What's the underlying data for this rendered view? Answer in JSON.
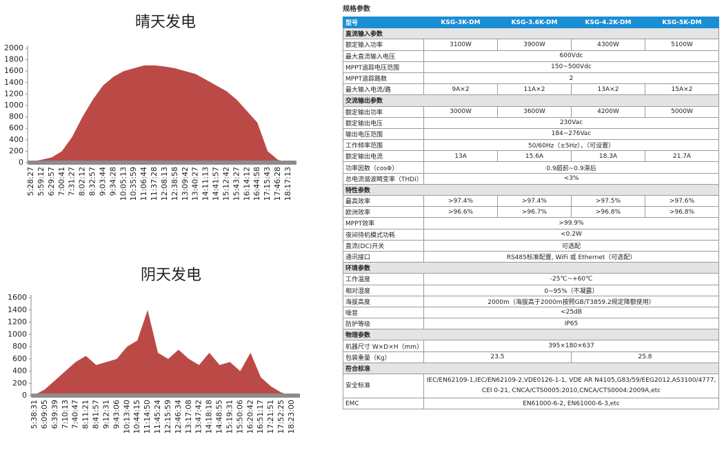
{
  "chart_data": [
    {
      "type": "area",
      "title": "晴天发电",
      "color": "#bb4a47",
      "categories": [
        "5:28:27",
        "5:59:12",
        "6:29:57",
        "7:00:41",
        "7:31:27",
        "8:02:12",
        "8:32:57",
        "9:03:44",
        "9:34:28",
        "10:05:13",
        "10:35:59",
        "11:06:44",
        "11:37:28",
        "12:08:13",
        "12:38:58",
        "13:09:42",
        "13:40:27",
        "14:11:13",
        "14:41:57",
        "15:12:42",
        "15:43:27",
        "16:14:12",
        "16:44:58",
        "17:15:43",
        "17:46:28",
        "18:17:13"
      ],
      "values": [
        20,
        50,
        90,
        200,
        450,
        800,
        1100,
        1350,
        1500,
        1600,
        1650,
        1700,
        1700,
        1680,
        1650,
        1600,
        1550,
        1450,
        1350,
        1250,
        1100,
        900,
        700,
        200,
        50,
        0
      ],
      "ylim": [
        0,
        2000
      ],
      "yticks": [
        0,
        200,
        400,
        600,
        800,
        1000,
        1200,
        1400,
        1600,
        1800,
        2000
      ]
    },
    {
      "type": "area",
      "title": "阴天发电",
      "color": "#bb4a47",
      "categories": [
        "5:38:31",
        "6:09:05",
        "6:39:39",
        "7:10:13",
        "7:40:47",
        "8:11:21",
        "8:41:57",
        "9:12:31",
        "9:43:06",
        "10:13:40",
        "10:44:15",
        "11:14:50",
        "11:45:24",
        "12:15:59",
        "12:46:34",
        "13:17:08",
        "13:47:42",
        "14:18:18",
        "14:48:55",
        "15:19:31",
        "15:50:06",
        "16:20:42",
        "16:51:17",
        "17:21:51",
        "17:52:25",
        "18:23:00"
      ],
      "values": [
        10,
        100,
        250,
        400,
        550,
        650,
        500,
        550,
        600,
        800,
        900,
        1400,
        700,
        600,
        750,
        600,
        500,
        700,
        500,
        550,
        400,
        700,
        300,
        150,
        50,
        0
      ],
      "ylim": [
        0,
        1600
      ],
      "yticks": [
        0,
        200,
        400,
        600,
        800,
        1000,
        1200,
        1400,
        1600
      ]
    }
  ],
  "table": {
    "title": "规格参数",
    "header": [
      "型号",
      "KSG-3K-DM",
      "KSG-3.6K-DM",
      "KSG-4.2K-DM",
      "KSG-5K-DM"
    ],
    "rows": [
      {
        "section": "直流输入参数"
      },
      {
        "label": "额定输入功率",
        "cells": [
          "3100W",
          "3900W",
          "4300W",
          "5100W"
        ]
      },
      {
        "label": "最大直流输入电压",
        "cells": [
          "600Vdc"
        ]
      },
      {
        "label": "MPPT追踪电压范围",
        "cells": [
          "150~500Vdc"
        ]
      },
      {
        "label": "MPPT追踪路数",
        "cells": [
          "2"
        ]
      },
      {
        "label": "最大输入电流/路",
        "cells": [
          "9A×2",
          "11A×2",
          "13A×2",
          "15A×2"
        ]
      },
      {
        "section": "交流输出参数"
      },
      {
        "label": "额定输出功率",
        "cells": [
          "3000W",
          "3600W",
          "4200W",
          "5000W"
        ]
      },
      {
        "label": "额定输出电压",
        "cells": [
          "230Vac"
        ]
      },
      {
        "label": "输出电压范围",
        "cells": [
          "184~276Vac"
        ]
      },
      {
        "label": "工作频率范围",
        "cells": [
          "50/60Hz（±5Hz），（可设置）"
        ]
      },
      {
        "label": "额定输出电流",
        "cells": [
          "13A",
          "15.6A",
          "18.3A",
          "21.7A"
        ]
      },
      {
        "label": "功率因数（cosΦ）",
        "cells": [
          "0.9超前~0.9滞后"
        ]
      },
      {
        "label": "总电流谐波畸变率（THDi）",
        "cells": [
          "<3%"
        ]
      },
      {
        "section": "特性参数"
      },
      {
        "label": "最高效率",
        "cells": [
          ">97.4%",
          ">97.4%",
          ">97.5%",
          ">97.6%"
        ]
      },
      {
        "label": "欧洲效率",
        "cells": [
          ">96.6%",
          ">96.7%",
          ">96.8%",
          ">96.8%"
        ]
      },
      {
        "label": "MPPT效率",
        "cells": [
          ">99.9%"
        ]
      },
      {
        "label": "夜间待机模式功耗",
        "cells": [
          "<0.2W"
        ]
      },
      {
        "label": "直流(DC)开关",
        "cells": [
          "可选配"
        ]
      },
      {
        "label": "通讯接口",
        "cells": [
          "RS485标准配置, WiFi 或 Ethernet（可选配）"
        ]
      },
      {
        "section": "环境参数"
      },
      {
        "label": "工作温度",
        "cells": [
          "-25℃~+60℃"
        ]
      },
      {
        "label": "相对湿度",
        "cells": [
          "0~95%（不凝露）"
        ]
      },
      {
        "label": "海拔高度",
        "cells": [
          "2000m（海拔高于2000m按照GB/T3859.2规定降额使用）"
        ]
      },
      {
        "label": "噪音",
        "cells": [
          "<25dB"
        ]
      },
      {
        "label": "防护等级",
        "cells": [
          "IP65"
        ]
      },
      {
        "section": "物理参数"
      },
      {
        "label": "机器尺寸 W×D×H（mm）",
        "cells": [
          "395×180×637"
        ]
      },
      {
        "label": "包装重量（Kg）",
        "cells": [
          "23.5",
          "25.8"
        ]
      },
      {
        "section": "符合标准"
      },
      {
        "label": "安全标准",
        "cells": [
          "IEC/EN62109-1,IEC/EN62109-2,VDE0126-1-1, VDE AR N4105,G83/59/EEG2012,AS3100/4777, CEI 0-21, CNCA/CTS0005:2010,CNCA/CTS0004:2009A,etc"
        ]
      },
      {
        "label": "EMC",
        "cells": [
          "EN61000-6-2, EN61000-6-3,etc"
        ]
      }
    ]
  }
}
